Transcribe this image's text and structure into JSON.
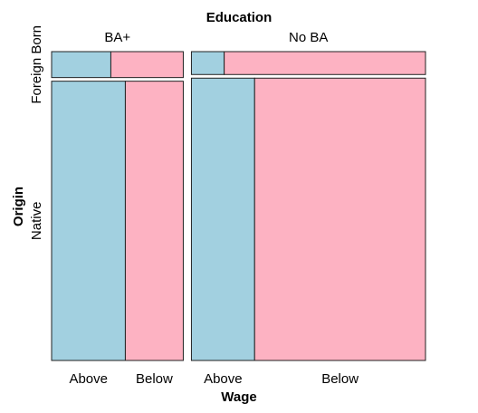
{
  "chart_data": {
    "type": "mosaic",
    "title": "Education",
    "x_title": "Wage",
    "y_title": "Origin",
    "education_levels": [
      "BA+",
      "No BA"
    ],
    "origin_levels": [
      "Foreign Born",
      "Native"
    ],
    "wage_levels": [
      "Above",
      "Below"
    ],
    "colors": {
      "Above": "#a2d0e0",
      "Below": "#fdb2c2"
    },
    "education_share": {
      "BA+": 0.36,
      "No BA": 0.64
    },
    "cells": [
      {
        "education": "BA+",
        "origin": "Foreign Born",
        "origin_share": 0.085,
        "above_share": 0.45
      },
      {
        "education": "BA+",
        "origin": "Native",
        "origin_share": 0.915,
        "above_share": 0.56
      },
      {
        "education": "No BA",
        "origin": "Foreign Born",
        "origin_share": 0.075,
        "above_share": 0.14
      },
      {
        "education": "No BA",
        "origin": "Native",
        "origin_share": 0.925,
        "above_share": 0.27
      }
    ]
  }
}
